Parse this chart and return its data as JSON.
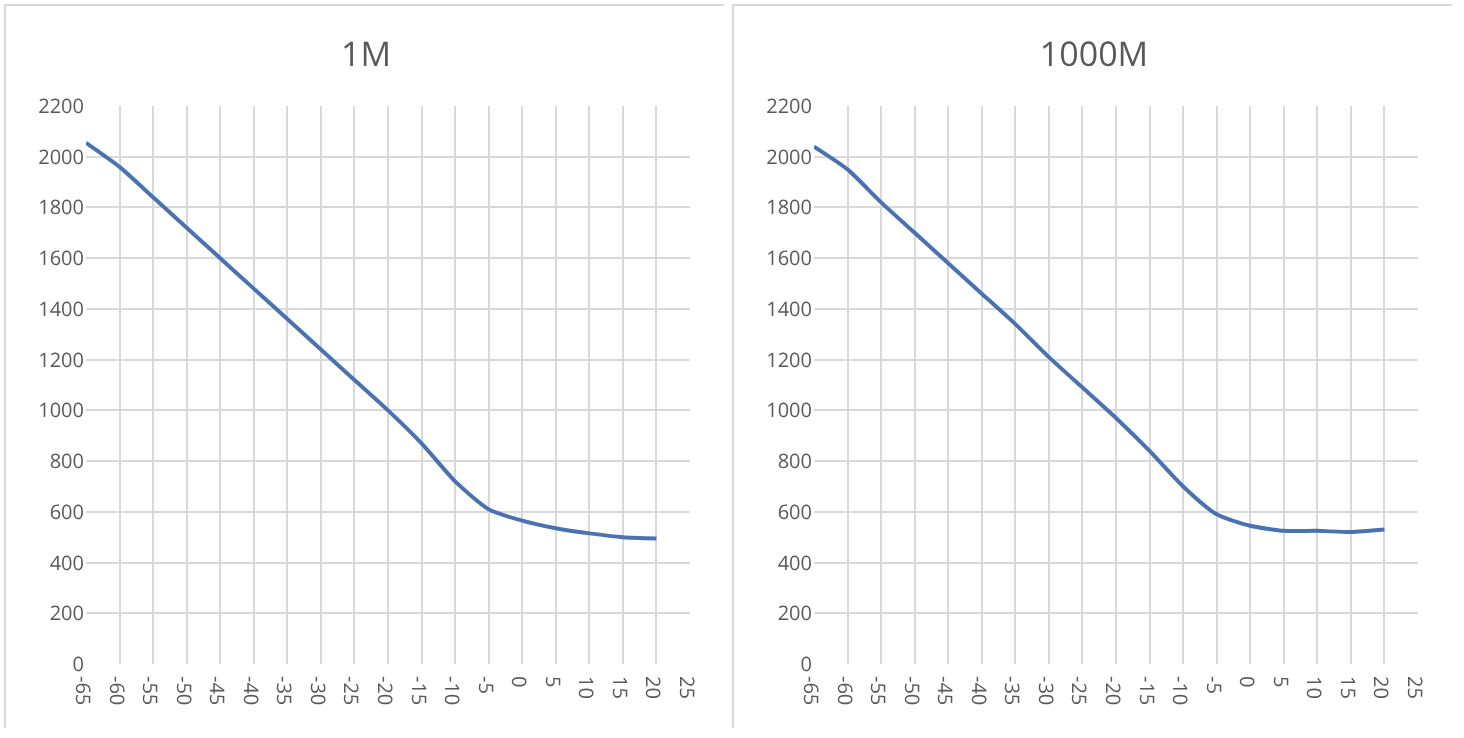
{
  "chart_data": [
    {
      "type": "line",
      "title": "1M",
      "x": [
        -65,
        -60,
        -55,
        -50,
        -45,
        -40,
        -35,
        -30,
        -25,
        -20,
        -15,
        -10,
        -5,
        0,
        5,
        10,
        15,
        20
      ],
      "series": [
        {
          "color": "#4a72b0",
          "values": [
            2055,
            1960,
            1840,
            1720,
            1600,
            1480,
            1360,
            1240,
            1120,
            1000,
            870,
            720,
            610,
            565,
            535,
            515,
            500,
            495
          ]
        }
      ],
      "xlim": [
        -65,
        25
      ],
      "xticks": [
        -65,
        -60,
        -55,
        -50,
        -45,
        -40,
        -35,
        -30,
        -25,
        -20,
        -15,
        -10,
        -5,
        0,
        5,
        10,
        15,
        20,
        25
      ],
      "ylim": [
        0,
        2200
      ],
      "yticks": [
        0,
        200,
        400,
        600,
        800,
        1000,
        1200,
        1400,
        1600,
        1800,
        2000,
        2200
      ],
      "grid": true,
      "marker": "none",
      "line_style": "solid"
    },
    {
      "type": "line",
      "title": "1000M",
      "x": [
        -65,
        -60,
        -55,
        -50,
        -45,
        -40,
        -35,
        -30,
        -25,
        -20,
        -15,
        -10,
        -5,
        0,
        5,
        10,
        15,
        20
      ],
      "series": [
        {
          "color": "#4a72b0",
          "values": [
            2040,
            1950,
            1820,
            1700,
            1580,
            1460,
            1340,
            1210,
            1090,
            970,
            840,
            700,
            590,
            545,
            525,
            525,
            520,
            530
          ]
        }
      ],
      "xlim": [
        -65,
        25
      ],
      "xticks": [
        -65,
        -60,
        -55,
        -50,
        -45,
        -40,
        -35,
        -30,
        -25,
        -20,
        -15,
        -10,
        -5,
        0,
        5,
        10,
        15,
        20,
        25
      ],
      "ylim": [
        0,
        2200
      ],
      "yticks": [
        0,
        200,
        400,
        600,
        800,
        1000,
        1200,
        1400,
        1600,
        1800,
        2000,
        2200
      ],
      "grid": true,
      "marker": "none",
      "line_style": "solid"
    }
  ]
}
